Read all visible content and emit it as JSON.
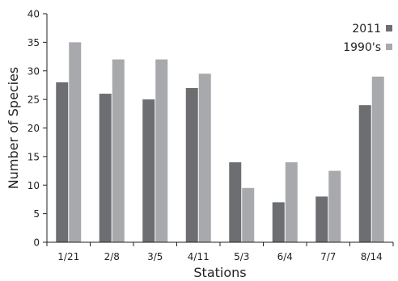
{
  "chart_data": {
    "type": "bar",
    "xlabel": "Stations",
    "ylabel": "Number of Species",
    "categories": [
      "1/21",
      "2/8",
      "3/5",
      "4/11",
      "5/3",
      "6/4",
      "7/7",
      "8/14"
    ],
    "series": [
      {
        "name": "2011",
        "color": "#6d6e71",
        "values": [
          28,
          26,
          25,
          27,
          14,
          7,
          8,
          24
        ]
      },
      {
        "name": "1990's",
        "color": "#a7a9ac",
        "values": [
          35,
          32,
          32,
          29.5,
          9.5,
          14,
          12.5,
          29
        ]
      }
    ],
    "ylim": [
      0,
      40
    ],
    "yticks": [
      0,
      5,
      10,
      15,
      20,
      25,
      30,
      35,
      40
    ],
    "grid": false,
    "legend_position": "top-right"
  }
}
